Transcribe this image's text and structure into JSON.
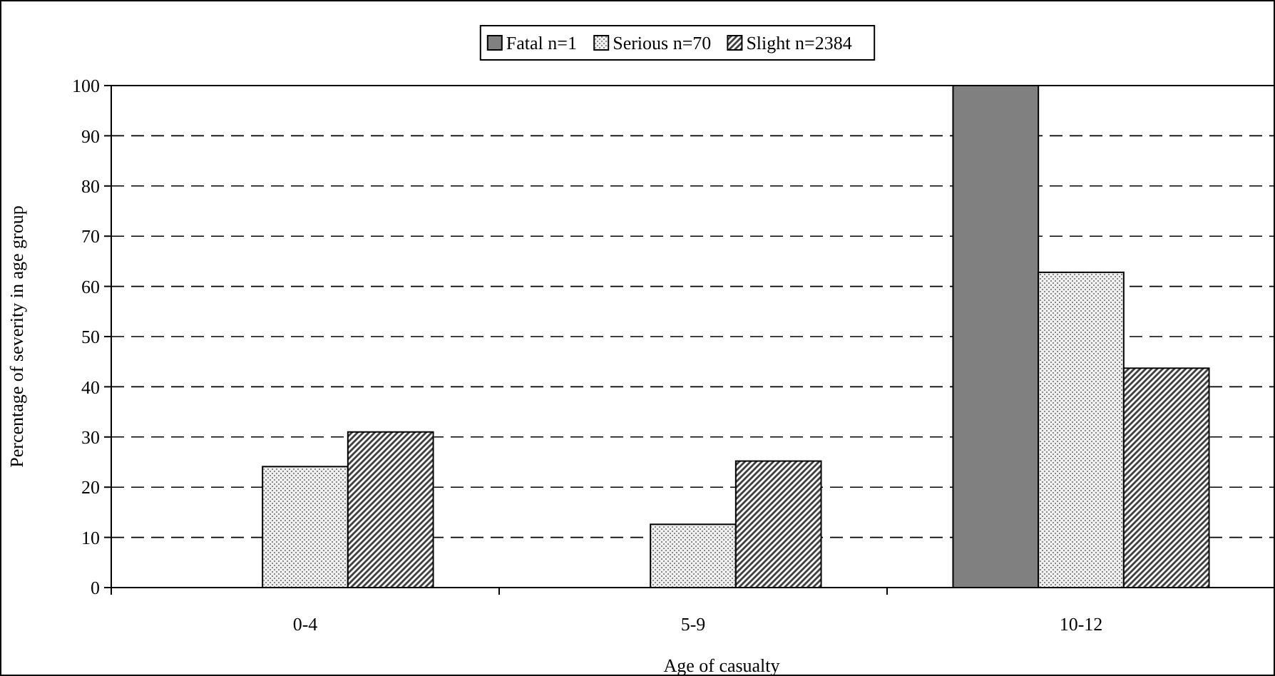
{
  "chart_data": {
    "type": "bar",
    "xlabel": "Age of casualty",
    "ylabel": "Percentage of severity in age group",
    "categories": [
      "0-4",
      "5-9",
      "10-12"
    ],
    "series": [
      {
        "name": "Fatal n=1",
        "color": "#808080",
        "values": [
          0,
          0,
          100
        ]
      },
      {
        "name": "Serious n=70",
        "color": "#f0f0f0",
        "values": [
          24.1,
          12.6,
          62.8
        ]
      },
      {
        "name": "Slight n=2384",
        "color": "#404040",
        "values": [
          31,
          25.2,
          43.7
        ]
      }
    ],
    "ylim": [
      0,
      100
    ],
    "yticks": [
      0,
      10,
      20,
      30,
      40,
      50,
      60,
      70,
      80,
      90,
      100
    ],
    "grid": "y",
    "legend": "top"
  }
}
